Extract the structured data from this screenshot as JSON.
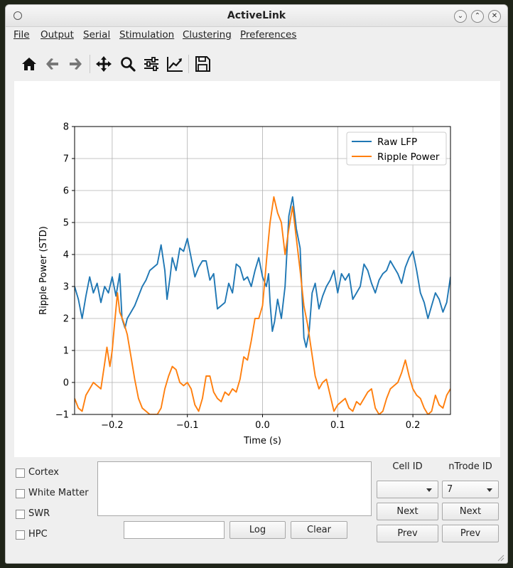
{
  "window": {
    "title": "ActiveLink"
  },
  "menu": [
    {
      "label": "File"
    },
    {
      "label": "Output"
    },
    {
      "label": "Serial"
    },
    {
      "label": "Stimulation"
    },
    {
      "label": "Clustering"
    },
    {
      "label": "Preferences"
    }
  ],
  "toolbar": {
    "icons": [
      "home-icon",
      "back-icon",
      "forward-icon",
      "pan-icon",
      "zoom-icon",
      "configure-subplots-icon",
      "edit-axis-icon",
      "save-icon"
    ]
  },
  "chart_data": {
    "type": "line",
    "title": "",
    "xlabel": "Time (s)",
    "ylabel": "Ripple Power (STD)",
    "xlim": [
      -0.25,
      0.25
    ],
    "ylim": [
      -1,
      8
    ],
    "xticks": [
      -0.2,
      -0.1,
      0.0,
      0.1,
      0.2
    ],
    "xtick_labels": [
      "−0.2",
      "−0.1",
      "0.0",
      "0.1",
      "0.2"
    ],
    "yticks": [
      -1,
      0,
      1,
      2,
      3,
      4,
      5,
      6,
      7,
      8
    ],
    "ytick_labels": [
      "−1",
      "0",
      "1",
      "2",
      "3",
      "4",
      "5",
      "6",
      "7",
      "8"
    ],
    "grid": true,
    "legend_position": "top-right",
    "series": [
      {
        "name": "Raw LFP",
        "color": "#1f77b4",
        "points": [
          [
            -0.25,
            3.0
          ],
          [
            -0.245,
            2.6
          ],
          [
            -0.24,
            2.0
          ],
          [
            -0.235,
            2.7
          ],
          [
            -0.23,
            3.3
          ],
          [
            -0.225,
            2.8
          ],
          [
            -0.22,
            3.1
          ],
          [
            -0.215,
            2.5
          ],
          [
            -0.21,
            3.0
          ],
          [
            -0.205,
            2.8
          ],
          [
            -0.2,
            3.3
          ],
          [
            -0.195,
            2.7
          ],
          [
            -0.19,
            3.4
          ],
          [
            -0.187,
            2.0
          ],
          [
            -0.183,
            1.7
          ],
          [
            -0.18,
            2.0
          ],
          [
            -0.175,
            2.2
          ],
          [
            -0.17,
            2.4
          ],
          [
            -0.165,
            2.7
          ],
          [
            -0.16,
            3.0
          ],
          [
            -0.155,
            3.2
          ],
          [
            -0.15,
            3.5
          ],
          [
            -0.145,
            3.6
          ],
          [
            -0.14,
            3.7
          ],
          [
            -0.135,
            4.3
          ],
          [
            -0.13,
            3.5
          ],
          [
            -0.127,
            2.6
          ],
          [
            -0.123,
            3.3
          ],
          [
            -0.12,
            3.9
          ],
          [
            -0.115,
            3.5
          ],
          [
            -0.11,
            4.2
          ],
          [
            -0.105,
            4.1
          ],
          [
            -0.1,
            4.5
          ],
          [
            -0.095,
            3.9
          ],
          [
            -0.09,
            3.3
          ],
          [
            -0.085,
            3.6
          ],
          [
            -0.08,
            3.8
          ],
          [
            -0.075,
            3.8
          ],
          [
            -0.07,
            3.2
          ],
          [
            -0.065,
            3.4
          ],
          [
            -0.06,
            2.3
          ],
          [
            -0.055,
            2.4
          ],
          [
            -0.05,
            2.5
          ],
          [
            -0.045,
            3.1
          ],
          [
            -0.04,
            2.8
          ],
          [
            -0.035,
            3.7
          ],
          [
            -0.03,
            3.6
          ],
          [
            -0.025,
            3.2
          ],
          [
            -0.02,
            3.3
          ],
          [
            -0.015,
            3.0
          ],
          [
            -0.01,
            3.5
          ],
          [
            -0.005,
            3.9
          ],
          [
            0.0,
            3.3
          ],
          [
            0.005,
            3.0
          ],
          [
            0.008,
            3.4
          ],
          [
            0.01,
            2.5
          ],
          [
            0.013,
            1.6
          ],
          [
            0.016,
            1.9
          ],
          [
            0.02,
            2.6
          ],
          [
            0.025,
            2.0
          ],
          [
            0.03,
            3.0
          ],
          [
            0.035,
            5.2
          ],
          [
            0.04,
            5.8
          ],
          [
            0.045,
            4.8
          ],
          [
            0.05,
            4.2
          ],
          [
            0.055,
            1.4
          ],
          [
            0.058,
            1.1
          ],
          [
            0.062,
            1.6
          ],
          [
            0.066,
            2.8
          ],
          [
            0.07,
            3.1
          ],
          [
            0.075,
            2.3
          ],
          [
            0.08,
            2.7
          ],
          [
            0.085,
            3.0
          ],
          [
            0.09,
            3.2
          ],
          [
            0.095,
            3.5
          ],
          [
            0.1,
            2.8
          ],
          [
            0.105,
            3.4
          ],
          [
            0.11,
            3.2
          ],
          [
            0.115,
            3.4
          ],
          [
            0.12,
            2.6
          ],
          [
            0.125,
            2.8
          ],
          [
            0.13,
            3.0
          ],
          [
            0.135,
            3.7
          ],
          [
            0.14,
            3.5
          ],
          [
            0.145,
            3.1
          ],
          [
            0.15,
            2.8
          ],
          [
            0.155,
            3.2
          ],
          [
            0.16,
            3.4
          ],
          [
            0.165,
            3.5
          ],
          [
            0.17,
            3.8
          ],
          [
            0.175,
            3.6
          ],
          [
            0.18,
            3.4
          ],
          [
            0.185,
            3.1
          ],
          [
            0.19,
            3.6
          ],
          [
            0.195,
            3.9
          ],
          [
            0.2,
            4.1
          ],
          [
            0.205,
            3.5
          ],
          [
            0.21,
            2.8
          ],
          [
            0.215,
            2.5
          ],
          [
            0.22,
            2.0
          ],
          [
            0.225,
            2.4
          ],
          [
            0.23,
            2.8
          ],
          [
            0.235,
            2.6
          ],
          [
            0.24,
            2.2
          ],
          [
            0.245,
            2.5
          ],
          [
            0.25,
            3.3
          ]
        ]
      },
      {
        "name": "Ripple Power",
        "color": "#ff7f0e",
        "points": [
          [
            -0.25,
            -0.5
          ],
          [
            -0.245,
            -0.8
          ],
          [
            -0.24,
            -0.9
          ],
          [
            -0.235,
            -0.4
          ],
          [
            -0.23,
            -0.2
          ],
          [
            -0.225,
            0.0
          ],
          [
            -0.22,
            -0.1
          ],
          [
            -0.215,
            -0.2
          ],
          [
            -0.21,
            0.6
          ],
          [
            -0.207,
            1.1
          ],
          [
            -0.203,
            0.5
          ],
          [
            -0.2,
            1.0
          ],
          [
            -0.197,
            1.8
          ],
          [
            -0.193,
            2.8
          ],
          [
            -0.19,
            2.2
          ],
          [
            -0.185,
            1.9
          ],
          [
            -0.18,
            1.5
          ],
          [
            -0.175,
            0.8
          ],
          [
            -0.17,
            0.1
          ],
          [
            -0.165,
            -0.5
          ],
          [
            -0.16,
            -0.8
          ],
          [
            -0.155,
            -0.9
          ],
          [
            -0.15,
            -1.0
          ],
          [
            -0.145,
            -1.0
          ],
          [
            -0.14,
            -1.0
          ],
          [
            -0.135,
            -0.8
          ],
          [
            -0.13,
            -0.2
          ],
          [
            -0.125,
            0.2
          ],
          [
            -0.12,
            0.5
          ],
          [
            -0.115,
            0.4
          ],
          [
            -0.11,
            0.0
          ],
          [
            -0.105,
            -0.1
          ],
          [
            -0.1,
            0.0
          ],
          [
            -0.095,
            -0.2
          ],
          [
            -0.09,
            -0.7
          ],
          [
            -0.085,
            -0.9
          ],
          [
            -0.08,
            -0.5
          ],
          [
            -0.075,
            0.2
          ],
          [
            -0.07,
            0.2
          ],
          [
            -0.065,
            -0.3
          ],
          [
            -0.06,
            -0.5
          ],
          [
            -0.055,
            -0.6
          ],
          [
            -0.05,
            -0.3
          ],
          [
            -0.045,
            -0.4
          ],
          [
            -0.04,
            -0.2
          ],
          [
            -0.035,
            -0.3
          ],
          [
            -0.03,
            0.1
          ],
          [
            -0.025,
            0.8
          ],
          [
            -0.02,
            0.7
          ],
          [
            -0.015,
            1.3
          ],
          [
            -0.01,
            2.0
          ],
          [
            -0.005,
            2.0
          ],
          [
            0.0,
            2.4
          ],
          [
            0.003,
            3.2
          ],
          [
            0.006,
            4.0
          ],
          [
            0.01,
            5.0
          ],
          [
            0.015,
            5.8
          ],
          [
            0.02,
            5.3
          ],
          [
            0.025,
            5.0
          ],
          [
            0.03,
            4.0
          ],
          [
            0.035,
            4.8
          ],
          [
            0.04,
            5.5
          ],
          [
            0.045,
            4.5
          ],
          [
            0.05,
            3.5
          ],
          [
            0.055,
            2.4
          ],
          [
            0.06,
            1.8
          ],
          [
            0.065,
            1.0
          ],
          [
            0.07,
            0.2
          ],
          [
            0.075,
            -0.2
          ],
          [
            0.08,
            0.0
          ],
          [
            0.085,
            0.1
          ],
          [
            0.09,
            -0.4
          ],
          [
            0.095,
            -0.9
          ],
          [
            0.1,
            -0.7
          ],
          [
            0.105,
            -0.6
          ],
          [
            0.11,
            -0.5
          ],
          [
            0.115,
            -0.8
          ],
          [
            0.12,
            -0.9
          ],
          [
            0.125,
            -0.6
          ],
          [
            0.13,
            -0.7
          ],
          [
            0.135,
            -0.5
          ],
          [
            0.14,
            -0.3
          ],
          [
            0.145,
            -0.2
          ],
          [
            0.15,
            -0.8
          ],
          [
            0.155,
            -1.0
          ],
          [
            0.16,
            -0.9
          ],
          [
            0.165,
            -0.5
          ],
          [
            0.17,
            -0.2
          ],
          [
            0.175,
            -0.1
          ],
          [
            0.18,
            0.0
          ],
          [
            0.185,
            0.3
          ],
          [
            0.19,
            0.7
          ],
          [
            0.195,
            0.2
          ],
          [
            0.2,
            -0.2
          ],
          [
            0.205,
            -0.4
          ],
          [
            0.21,
            -0.5
          ],
          [
            0.215,
            -0.8
          ],
          [
            0.22,
            -1.0
          ],
          [
            0.225,
            -0.9
          ],
          [
            0.23,
            -0.4
          ],
          [
            0.235,
            -0.7
          ],
          [
            0.24,
            -0.8
          ],
          [
            0.245,
            -0.4
          ],
          [
            0.25,
            -0.2
          ]
        ]
      }
    ]
  },
  "checkboxes": [
    {
      "label": "Cortex",
      "checked": false
    },
    {
      "label": "White Matter",
      "checked": false
    },
    {
      "label": "SWR",
      "checked": false
    },
    {
      "label": "HPC",
      "checked": false
    }
  ],
  "controls": {
    "log_text": "",
    "command_value": "",
    "log_button": "Log",
    "clear_button": "Clear",
    "cell_id_label": "Cell ID",
    "cell_id_value": "",
    "ntrode_id_label": "nTrode ID",
    "ntrode_id_value": "7",
    "cell_next": "Next",
    "cell_prev": "Prev",
    "ntrode_next": "Next",
    "ntrode_prev": "Prev"
  }
}
